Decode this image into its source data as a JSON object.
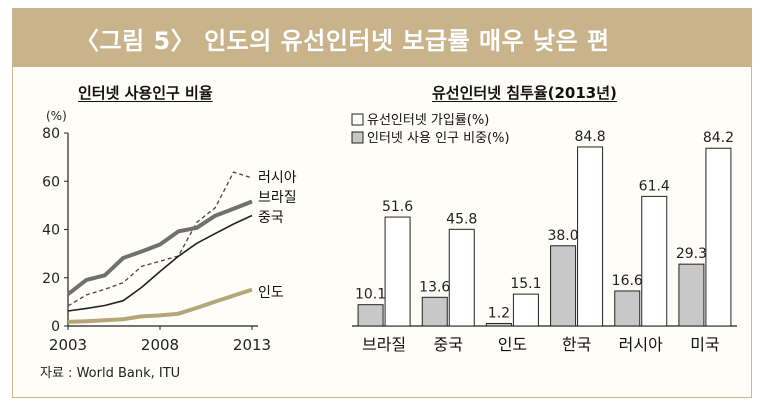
{
  "header": {
    "title": "〈그림 5〉 인도의  유선인터넷 보급률 매우 낮은 편"
  },
  "source": "자료 : World Bank, ITU",
  "colors": {
    "banner": "#c8b38a",
    "russia": "#444444",
    "brazil": "#707070",
    "china": "#222222",
    "india": "#b5a57a",
    "bar_subscription": "#ffffff",
    "bar_usage": "#c8c8c8"
  },
  "chart_data": [
    {
      "type": "line",
      "title": "인터넷 사용인구 비율",
      "ylabel": "(%)",
      "ylim": [
        0,
        80
      ],
      "yticks": [
        0,
        20,
        40,
        60,
        80
      ],
      "xlim": [
        2003,
        2013
      ],
      "xticks": [
        2003,
        2008,
        2013
      ],
      "x": [
        2003,
        2004,
        2005,
        2006,
        2007,
        2008,
        2009,
        2010,
        2011,
        2012,
        2013
      ],
      "series": [
        {
          "name": "러시아",
          "style": "dashed",
          "values": [
            8.3,
            12.9,
            15.2,
            18.0,
            24.7,
            26.8,
            29.0,
            43.0,
            49.0,
            63.8,
            61.4
          ]
        },
        {
          "name": "브라질",
          "style": "thick",
          "values": [
            13.2,
            19.1,
            21.0,
            28.2,
            30.9,
            33.8,
            39.2,
            40.7,
            45.7,
            48.6,
            51.6
          ]
        },
        {
          "name": "중국",
          "style": "solid",
          "values": [
            6.2,
            7.3,
            8.5,
            10.5,
            16.0,
            22.6,
            28.9,
            34.3,
            38.3,
            42.3,
            45.8
          ]
        },
        {
          "name": "인도",
          "style": "thick-gold",
          "values": [
            1.7,
            2.0,
            2.4,
            2.8,
            4.0,
            4.4,
            5.1,
            7.5,
            10.1,
            12.6,
            15.1
          ]
        }
      ]
    },
    {
      "type": "bar",
      "title": "유선인터넷 침투율(2013년)",
      "categories": [
        "브라질",
        "중국",
        "인도",
        "한국",
        "러시아",
        "미국"
      ],
      "ylim": [
        0,
        90
      ],
      "series": [
        {
          "name": "인터넷 사용 인구 비중(%)",
          "values": [
            10.1,
            13.6,
            1.2,
            38.0,
            16.6,
            29.3
          ]
        },
        {
          "name": "유선인터넷 가입률(%)",
          "values": [
            51.6,
            45.8,
            15.1,
            84.8,
            61.4,
            84.2
          ]
        }
      ],
      "legend": [
        "유선인터넷 가입률(%)",
        "인터넷 사용 인구 비중(%)"
      ],
      "legend_position": "top-left"
    }
  ]
}
